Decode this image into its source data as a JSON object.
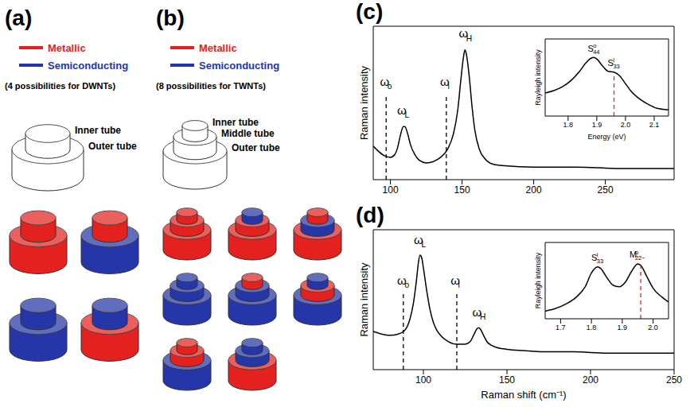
{
  "panel_a": {
    "letter": "(a)",
    "tube_types": [
      {
        "label": "Metallic",
        "color": "#e3221f"
      },
      {
        "label": "Semiconducting",
        "color": "#2536a8"
      }
    ],
    "note": "(4 possibilities for DWNTs)",
    "schematic_labels": [
      "Inner tube",
      "Outer tube"
    ],
    "combinations": [
      {
        "outer": "Metallic",
        "inner": "Metallic"
      },
      {
        "outer": "Semiconducting",
        "inner": "Metallic"
      },
      {
        "outer": "Semiconducting",
        "inner": "Semiconducting"
      },
      {
        "outer": "Metallic",
        "inner": "Semiconducting"
      }
    ]
  },
  "panel_b": {
    "letter": "(b)",
    "tube_types": [
      {
        "label": "Metallic",
        "color": "#e3221f"
      },
      {
        "label": "Semiconducting",
        "color": "#2536a8"
      }
    ],
    "note": "(8 possibilities for TWNTs)",
    "schematic_labels": [
      "Inner tube",
      "Middle tube",
      "Outer tube"
    ],
    "combinations": [
      {
        "outer": "Metallic",
        "middle": "Metallic",
        "inner": "Metallic"
      },
      {
        "outer": "Metallic",
        "middle": "Metallic",
        "inner": "Semiconducting"
      },
      {
        "outer": "Metallic",
        "middle": "Semiconducting",
        "inner": "Metallic"
      },
      {
        "outer": "Semiconducting",
        "middle": "Semiconducting",
        "inner": "Semiconducting"
      },
      {
        "outer": "Semiconducting",
        "middle": "Semiconducting",
        "inner": "Metallic"
      },
      {
        "outer": "Semiconducting",
        "middle": "Metallic",
        "inner": "Semiconducting"
      },
      {
        "outer": "Semiconducting",
        "middle": "Metallic",
        "inner": "Metallic"
      },
      {
        "outer": "Metallic",
        "middle": "Semiconducting",
        "inner": "Semiconducting"
      }
    ]
  },
  "chart_data": [
    {
      "type": "line",
      "letter": "(c)",
      "y_label": "Raman intensity",
      "x": [
        88,
        92,
        96,
        100,
        103,
        105,
        107,
        109,
        110,
        112,
        114,
        117,
        120,
        125,
        130,
        135,
        140,
        144,
        147,
        149,
        151,
        152,
        153,
        155,
        157,
        159,
        162,
        166,
        172,
        180,
        200,
        230,
        260,
        298
      ],
      "values": [
        24,
        20,
        17,
        16,
        18,
        23,
        32,
        38,
        38,
        33,
        25,
        18,
        14,
        12,
        13,
        16,
        22,
        33,
        50,
        70,
        88,
        93,
        90,
        74,
        52,
        35,
        22,
        15,
        11,
        10,
        9,
        9,
        8,
        8
      ],
      "color": "#000000",
      "xlim": [
        88,
        298
      ],
      "xticks": [
        100,
        150,
        200,
        250
      ],
      "ylim": [
        0,
        110
      ],
      "tick_labels": "x",
      "annotations": [
        {
          "x": 97,
          "line_style": "dashed",
          "color": "#000000",
          "label": {
            "base": "ω",
            "sub": "o"
          }
        },
        {
          "x": 139,
          "line_style": "dashed",
          "color": "#000000",
          "label": {
            "base": "ω",
            "sub": "i"
          }
        },
        {
          "x": 109,
          "label": {
            "base": "ω",
            "sub": "L"
          }
        },
        {
          "x": 152,
          "label": {
            "base": "ω",
            "sub": "H"
          }
        }
      ],
      "inset": {
        "type": "line",
        "y_label": "Rayleigh intensity",
        "x_label": "Energy (eV)",
        "x": [
          1.72,
          1.75,
          1.78,
          1.81,
          1.84,
          1.86,
          1.88,
          1.89,
          1.9,
          1.92,
          1.94,
          1.96,
          1.98,
          2,
          2.02,
          2.05,
          2.08,
          2.11,
          2.15
        ],
        "values": [
          30,
          33,
          38,
          46,
          58,
          68,
          75,
          76,
          74,
          65,
          58,
          57,
          52,
          42,
          32,
          22,
          15,
          10,
          8
        ],
        "color": "#000000",
        "xlim": [
          1.72,
          2.15
        ],
        "xticks": [
          1.8,
          1.9,
          {
            "value": 2,
            "label": "2.0"
          },
          2.1
        ],
        "ylim": [
          0,
          100
        ],
        "tick_labels": "x",
        "annotations": [
          {
            "x": 1.96,
            "line_style": "dashed",
            "color": "#e8231f"
          },
          {
            "x": 1.89,
            "label": {
              "base": "S",
              "sup": "o",
              "sub": "44"
            }
          },
          {
            "x": 1.96,
            "label": {
              "base": "S",
              "sup": "i",
              "sub": "33"
            }
          }
        ]
      }
    },
    {
      "type": "line",
      "letter": "(d)",
      "y_label": "Raman intensity",
      "x_label": "Raman shift (cm⁻¹)",
      "x": [
        70,
        75,
        80,
        85,
        88,
        90,
        92,
        94,
        96,
        97,
        98,
        99,
        100,
        102,
        104,
        106,
        108,
        111,
        115,
        120,
        125,
        128,
        130,
        132,
        133,
        134,
        136,
        138,
        141,
        145,
        150,
        160,
        175,
        190,
        210,
        230,
        250
      ],
      "values": [
        30,
        28,
        27,
        28,
        30,
        33,
        40,
        52,
        72,
        84,
        90,
        88,
        80,
        62,
        47,
        37,
        31,
        26,
        22,
        20,
        20,
        22,
        27,
        32,
        33,
        32,
        27,
        22,
        19,
        17,
        16,
        15,
        14,
        14,
        13,
        13,
        13
      ],
      "color": "#000000",
      "xlim": [
        70,
        250
      ],
      "xticks": [
        100,
        150,
        200,
        250
      ],
      "ylim": [
        0,
        110
      ],
      "tick_labels": "x",
      "annotations": [
        {
          "x": 88,
          "line_style": "dashed",
          "color": "#000000",
          "label": {
            "base": "ω",
            "sub": "o"
          }
        },
        {
          "x": 120,
          "line_style": "dashed",
          "color": "#000000",
          "label": {
            "base": "ω",
            "sub": "i"
          }
        },
        {
          "x": 98,
          "label": {
            "base": "ω",
            "sub": "L"
          }
        },
        {
          "x": 133,
          "label": {
            "base": "ω",
            "sub": "H"
          }
        }
      ],
      "inset": {
        "type": "line",
        "y_label": "Rayleigh intensity",
        "x": [
          1.65,
          1.68,
          1.72,
          1.75,
          1.78,
          1.8,
          1.82,
          1.83,
          1.85,
          1.87,
          1.89,
          1.91,
          1.93,
          1.95,
          1.96,
          1.98,
          2,
          2.03,
          2.05
        ],
        "values": [
          10,
          13,
          20,
          28,
          42,
          60,
          68,
          66,
          54,
          44,
          42,
          48,
          62,
          72,
          70,
          55,
          40,
          28,
          22
        ],
        "color": "#000000",
        "xlim": [
          1.65,
          2.05
        ],
        "xticks": [
          1.7,
          1.8,
          1.9,
          {
            "value": 2,
            "label": "2.0"
          }
        ],
        "ylim": [
          0,
          100
        ],
        "tick_labels": "x",
        "annotations": [
          {
            "x": 1.96,
            "line_style": "dashed",
            "color": "#e8231f"
          },
          {
            "x": 1.82,
            "label": {
              "base": "S",
              "sup": "i",
              "sub": "33"
            }
          },
          {
            "x": 1.95,
            "label": {
              "base": "M",
              "sup": "o",
              "sub": "22−"
            }
          }
        ]
      }
    }
  ]
}
